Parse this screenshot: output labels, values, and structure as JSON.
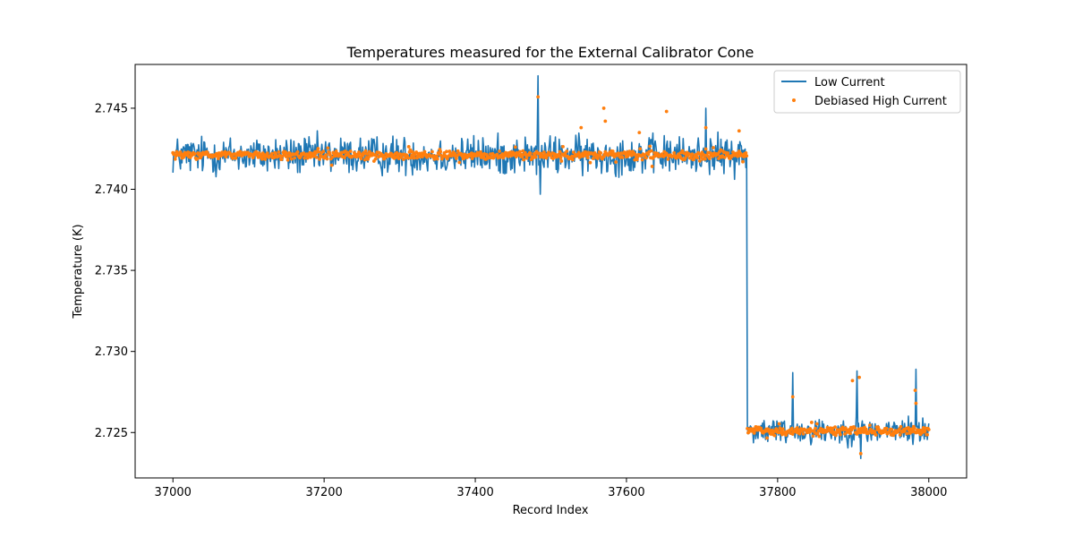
{
  "chart_data": {
    "type": "line",
    "title": "Temperatures measured for the External Calibrator Cone",
    "xlabel": "Record Index",
    "ylabel": "Temperature (K)",
    "xlim": [
      36950,
      38050
    ],
    "ylim": [
      2.7222,
      2.7477
    ],
    "xticks": [
      37000,
      37200,
      37400,
      37600,
      37800,
      38000
    ],
    "xtick_labels": [
      "37000",
      "37200",
      "37400",
      "37600",
      "37800",
      "38000"
    ],
    "yticks": [
      2.725,
      2.73,
      2.735,
      2.74,
      2.745
    ],
    "ytick_labels": [
      "2.725",
      "2.730",
      "2.735",
      "2.740",
      "2.745"
    ],
    "legend_position": "top-right",
    "series": [
      {
        "name": "Low Current",
        "style": "line",
        "color": "#1f77b4",
        "x_start": 37000,
        "x_end": 38000,
        "step_at": 37760,
        "level_before": 2.7421,
        "level_after": 2.7251,
        "noise_amplitude_before": 0.0013,
        "noise_amplitude_after": 0.0009,
        "spikes": [
          {
            "x": 37483,
            "y": 2.747
          },
          {
            "x": 37486,
            "y": 2.7397
          },
          {
            "x": 37705,
            "y": 2.745
          },
          {
            "x": 37820,
            "y": 2.7287
          },
          {
            "x": 37905,
            "y": 2.7288
          },
          {
            "x": 37910,
            "y": 2.7234
          },
          {
            "x": 37983,
            "y": 2.7289
          }
        ]
      },
      {
        "name": "Debiased High Current",
        "style": "scatter",
        "color": "#ff7f0e",
        "x_start": 37000,
        "x_end": 38000,
        "step_at": 37760,
        "level_before": 2.7421,
        "level_after": 2.7251,
        "noise_amplitude_before": 0.0003,
        "noise_amplitude_after": 0.0003,
        "outliers": [
          {
            "x": 37483,
            "y": 2.7457
          },
          {
            "x": 37570,
            "y": 2.745
          },
          {
            "x": 37572,
            "y": 2.7442
          },
          {
            "x": 37653,
            "y": 2.7448
          },
          {
            "x": 37540,
            "y": 2.7438
          },
          {
            "x": 37617,
            "y": 2.7435
          },
          {
            "x": 37705,
            "y": 2.7438
          },
          {
            "x": 37749,
            "y": 2.7436
          },
          {
            "x": 37820,
            "y": 2.7272
          },
          {
            "x": 37899,
            "y": 2.7282
          },
          {
            "x": 37908,
            "y": 2.7284
          },
          {
            "x": 37982,
            "y": 2.7276
          },
          {
            "x": 37983,
            "y": 2.7268
          },
          {
            "x": 37910,
            "y": 2.7237
          }
        ]
      }
    ]
  }
}
